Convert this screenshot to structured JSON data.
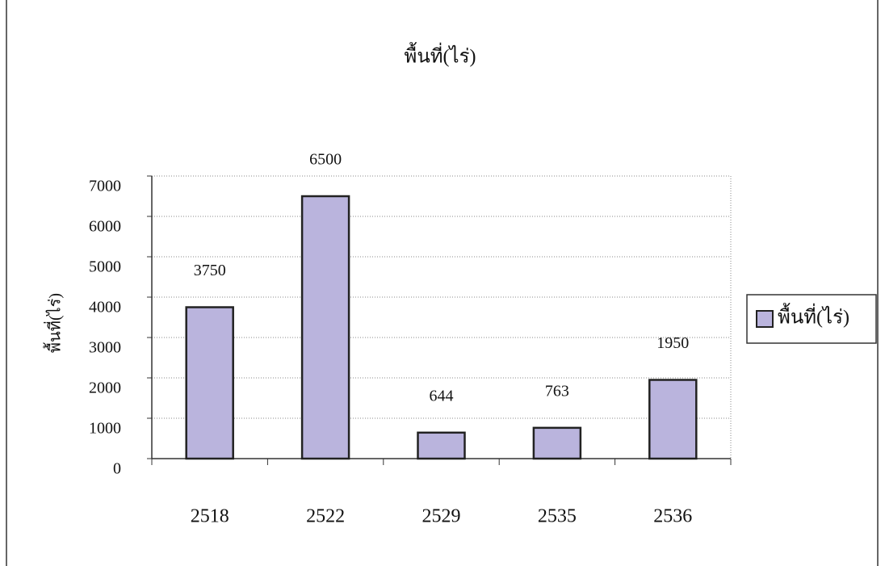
{
  "chart_data": {
    "type": "bar",
    "title": "พื้นที่(ไร่)",
    "y_label": "พื้นที่(ไร่)",
    "categories": [
      "2518",
      "2522",
      "2529",
      "2535",
      "2536"
    ],
    "series": [
      {
        "name": "พื้นที่(ไร่)",
        "color": "#bab4dd",
        "values": [
          3750,
          6500,
          644,
          763,
          1950
        ]
      }
    ],
    "ylim": [
      0,
      7000
    ],
    "yticks": [
      0,
      1000,
      2000,
      3000,
      4000,
      5000,
      6000,
      7000
    ],
    "grid": true,
    "legend": "right"
  }
}
